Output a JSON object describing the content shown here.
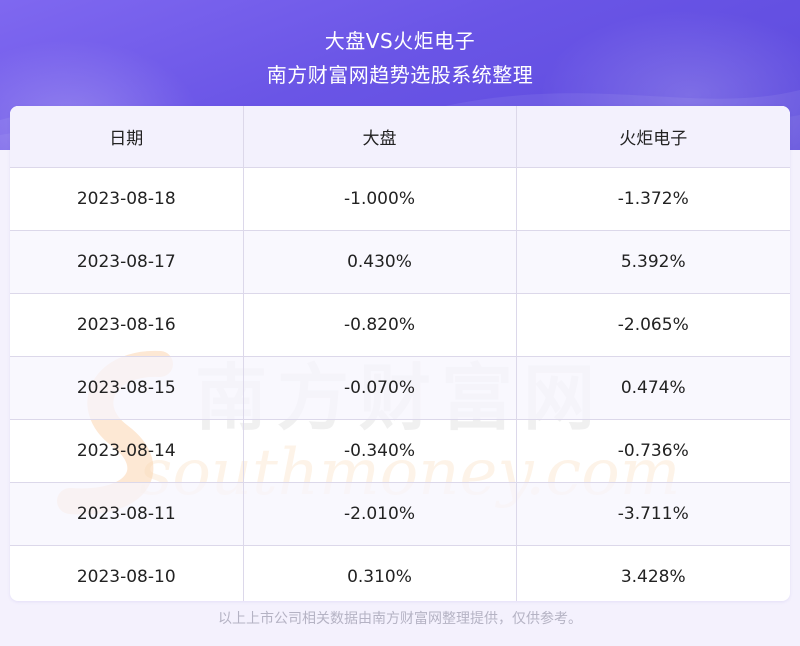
{
  "header": {
    "title": "大盘VS火炬电子",
    "subtitle": "南方财富网趋势选股系统整理"
  },
  "table": {
    "columns": [
      "日期",
      "大盘",
      "火炬电子"
    ],
    "rows": [
      [
        "2023-08-18",
        "-1.000%",
        "-1.372%"
      ],
      [
        "2023-08-17",
        "0.430%",
        "5.392%"
      ],
      [
        "2023-08-16",
        "-0.820%",
        "-2.065%"
      ],
      [
        "2023-08-15",
        "-0.070%",
        "0.474%"
      ],
      [
        "2023-08-14",
        "-0.340%",
        "-0.736%"
      ],
      [
        "2023-08-11",
        "-2.010%",
        "-3.711%"
      ],
      [
        "2023-08-10",
        "0.310%",
        "3.428%"
      ]
    ]
  },
  "watermark": {
    "cn": "南方财富网",
    "en": "southmoney.com"
  },
  "footer": {
    "note": "以上上市公司相关数据由南方财富网整理提供，仅供参考。"
  },
  "colors": {
    "header_gradient_start": "#7f68f0",
    "header_gradient_end": "#5b49dc",
    "page_background": "#f4f1fd",
    "header_row_background": "#f3f1fd",
    "grid_line": "#dcd8ea"
  }
}
